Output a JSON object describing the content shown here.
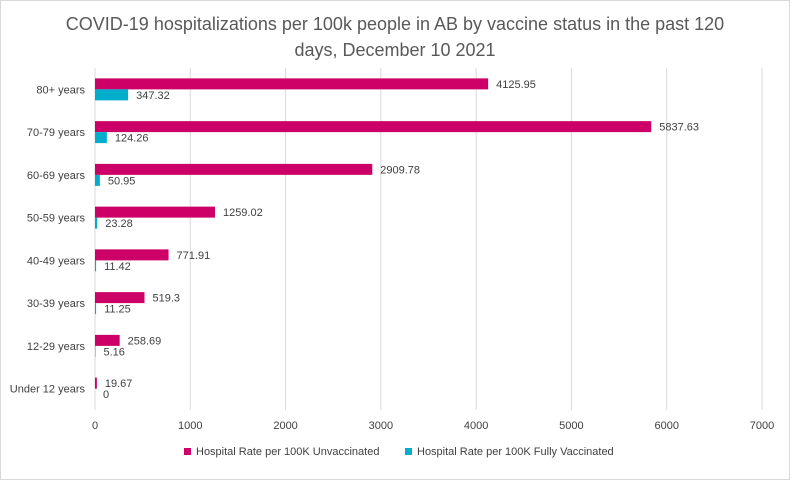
{
  "chart_data": {
    "type": "bar",
    "orientation": "horizontal",
    "title_lines": [
      "COVID-19 hospitalizations per 100k people in AB by vaccine status in the past 120",
      "days, December 10 2021"
    ],
    "categories": [
      "80+ years",
      "70-79 years",
      "60-69 years",
      "50-59 years",
      "40-49 years",
      "30-39 years",
      "12-29 years",
      "Under 12 years"
    ],
    "series": [
      {
        "name": "Hospital Rate per 100K Unvaccinated",
        "color": "#cc0066",
        "values": [
          4125.95,
          5837.63,
          2909.78,
          1259.02,
          771.91,
          519.3,
          258.69,
          19.67
        ],
        "labels": [
          "4125.95",
          "5837.63",
          "2909.78",
          "1259.02",
          "771.91",
          "519.3",
          "258.69",
          "19.67"
        ]
      },
      {
        "name": "Hospital Rate per 100K Fully Vaccinated",
        "color": "#00aecc",
        "values": [
          347.32,
          124.26,
          50.95,
          23.28,
          11.42,
          11.25,
          5.16,
          0
        ],
        "labels": [
          "347.32",
          "124.26",
          "50.95",
          "23.28",
          "11.42",
          "11.25",
          "5.16",
          "0"
        ]
      }
    ],
    "xlim": [
      0,
      7000
    ],
    "xticks": [
      0,
      1000,
      2000,
      3000,
      4000,
      5000,
      6000,
      7000
    ],
    "xtick_labels": [
      "0",
      "1000",
      "2000",
      "3000",
      "4000",
      "5000",
      "6000",
      "7000"
    ],
    "grid": true,
    "legend_position": "bottom",
    "gridline_color": "#d9d9d9"
  }
}
